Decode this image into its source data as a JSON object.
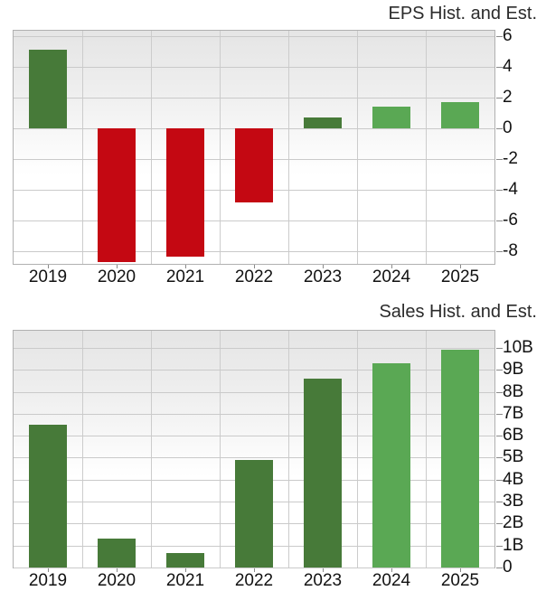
{
  "page": {
    "background": "#ffffff",
    "description": "Two stacked bar charts showing EPS and Sales history and estimates by year"
  },
  "colors": {
    "historical_bar_green": "#477a39",
    "estimate_bar_green": "#5aa854",
    "negative_bar_red": "#c40812",
    "grid_line": "#cccccc",
    "plot_border": "#b0b0b0",
    "plot_gradient_top": "#e5e5e5",
    "axis_text": "#121212",
    "title_text": "#2b2b2b"
  },
  "chart_data": [
    {
      "type": "bar",
      "title": "EPS Hist. and Est.",
      "categories": [
        "2019",
        "2020",
        "2021",
        "2022",
        "2023",
        "2024",
        "2025"
      ],
      "values": [
        5.1,
        -8.7,
        -8.35,
        -4.8,
        0.7,
        1.4,
        1.7
      ],
      "bar_roles": [
        "historical",
        "historical-negative",
        "historical-negative",
        "historical-negative",
        "historical",
        "estimate",
        "estimate"
      ],
      "bar_colors": [
        "#477a39",
        "#c40812",
        "#c40812",
        "#c40812",
        "#477a39",
        "#5aa854",
        "#5aa854"
      ],
      "xlabel": "",
      "ylabel": "",
      "ylim": [
        -8.8,
        6.35
      ],
      "y_ticks": [
        6,
        4,
        2,
        0,
        -2,
        -4,
        -6,
        -8
      ],
      "y_tick_labels": [
        "6",
        "4",
        "2",
        "0",
        "-2",
        "-4",
        "-6",
        "-8"
      ],
      "grid": true,
      "legend_position": "none",
      "axis_side": "right"
    },
    {
      "type": "bar",
      "title": "Sales Hist. and Est.",
      "categories": [
        "2019",
        "2020",
        "2021",
        "2022",
        "2023",
        "2024",
        "2025"
      ],
      "values": [
        6.5,
        1.3,
        0.65,
        4.9,
        8.6,
        9.3,
        9.9
      ],
      "unit": "B",
      "bar_roles": [
        "historical",
        "historical",
        "historical",
        "historical",
        "historical",
        "estimate",
        "estimate"
      ],
      "bar_colors": [
        "#477a39",
        "#477a39",
        "#477a39",
        "#477a39",
        "#477a39",
        "#5aa854",
        "#5aa854"
      ],
      "xlabel": "",
      "ylabel": "",
      "ylim": [
        0,
        10.78
      ],
      "y_ticks": [
        10,
        9,
        8,
        7,
        6,
        5,
        4,
        3,
        2,
        1,
        0
      ],
      "y_tick_labels": [
        "10B",
        "9B",
        "8B",
        "7B",
        "6B",
        "5B",
        "4B",
        "3B",
        "2B",
        "1B",
        "0"
      ],
      "grid": true,
      "legend_position": "none",
      "axis_side": "right"
    }
  ]
}
